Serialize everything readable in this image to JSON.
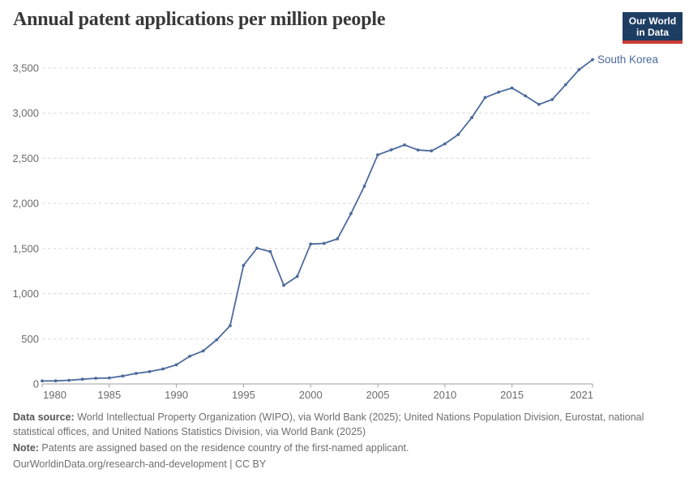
{
  "title": "Annual patent applications per million people",
  "logo": {
    "line1": "Our World",
    "line2": "in Data"
  },
  "entity_label": "South Korea",
  "footer": {
    "data_source_label": "Data source:",
    "data_source_text": " World Intellectual Property Organization (WIPO), via World Bank (2025); United Nations Population Division, Eurostat, national statistical offices, and United Nations Statistics Division, via World Bank (2025)",
    "note_label": "Note:",
    "note_text": " Patents are assigned based on the residence country of the first-named applicant.",
    "license_text": "OurWorldinData.org/research-and-development | CC BY"
  },
  "colors": {
    "line": "#4C6A9C",
    "grid": "#d8d8d8",
    "axis": "#a1a1a1",
    "tick_label": "#6b6b6b",
    "title": "#383838",
    "logo_bg": "#1d3d63",
    "logo_stripe": "#cc3b33"
  },
  "chart_data": {
    "type": "line",
    "title": "Annual patent applications per million people",
    "xlabel": "",
    "ylabel": "",
    "xlim": [
      1980,
      2021
    ],
    "ylim": [
      0,
      3500
    ],
    "grid": "horizontal-dashed",
    "legend_position": "end-of-line-label",
    "x_ticks": [
      1980,
      1985,
      1990,
      1995,
      2000,
      2005,
      2010,
      2015,
      2021
    ],
    "x_tick_labels": [
      "1980",
      "1985",
      "1990",
      "1995",
      "2000",
      "2005",
      "2010",
      "2015",
      "2021"
    ],
    "y_ticks": [
      0,
      500,
      1000,
      1500,
      2000,
      2500,
      3000,
      3500
    ],
    "y_tick_labels": [
      "0",
      "500",
      "1,000",
      "1,500",
      "2,000",
      "2,500",
      "3,000",
      "3,500"
    ],
    "series": [
      {
        "name": "South Korea",
        "color": "#4C6A9C",
        "x": [
          1980,
          1981,
          1982,
          1983,
          1984,
          1985,
          1986,
          1987,
          1988,
          1989,
          1990,
          1991,
          1992,
          1993,
          1994,
          1995,
          1996,
          1997,
          1998,
          1999,
          2000,
          2001,
          2002,
          2003,
          2004,
          2005,
          2006,
          2007,
          2008,
          2009,
          2010,
          2011,
          2012,
          2013,
          2014,
          2015,
          2016,
          2017,
          2018,
          2019,
          2020,
          2021
        ],
        "values": [
          33,
          34,
          40,
          52,
          63,
          66,
          88,
          117,
          136,
          166,
          212,
          307,
          366,
          489,
          645,
          1314,
          1504,
          1466,
          1093,
          1192,
          1550,
          1557,
          1607,
          1886,
          2191,
          2538,
          2594,
          2648,
          2592,
          2582,
          2660,
          2764,
          2951,
          3173,
          3233,
          3279,
          3191,
          3097,
          3151,
          3316,
          3482,
          3592
        ]
      }
    ]
  }
}
